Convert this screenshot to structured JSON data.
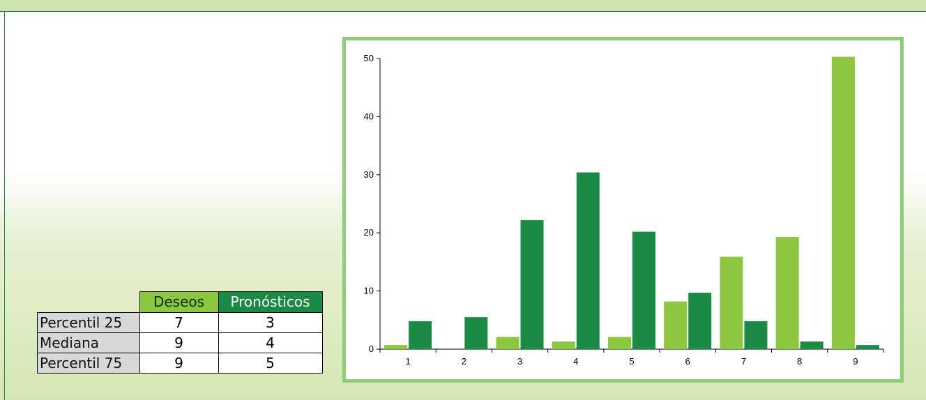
{
  "table": {
    "headers": [
      "Deseos",
      "Pronósticos"
    ],
    "rows": [
      {
        "label": "Percentil 25",
        "deseos": "7",
        "pronosticos": "3"
      },
      {
        "label": "Mediana",
        "deseos": "9",
        "pronosticos": "4"
      },
      {
        "label": "Percentil 75",
        "deseos": "9",
        "pronosticos": "5"
      }
    ]
  },
  "chart_data": {
    "type": "bar",
    "categories": [
      "1",
      "2",
      "3",
      "4",
      "5",
      "6",
      "7",
      "8",
      "9"
    ],
    "series": [
      {
        "name": "Deseos",
        "color": "#8dc63f",
        "values": [
          0.7,
          0,
          2.1,
          1.3,
          2.1,
          8.2,
          15.9,
          19.3,
          50.3
        ]
      },
      {
        "name": "Pronósticos",
        "color": "#1b8a44",
        "values": [
          4.8,
          5.5,
          22.2,
          30.4,
          20.2,
          9.7,
          4.8,
          1.3,
          0.7
        ]
      }
    ],
    "title": "",
    "xlabel": "",
    "ylabel": "",
    "ylim": [
      0,
      50
    ],
    "yticks": [
      "0",
      "10",
      "20",
      "30",
      "40",
      "50"
    ],
    "grid": false,
    "legend": "none"
  }
}
